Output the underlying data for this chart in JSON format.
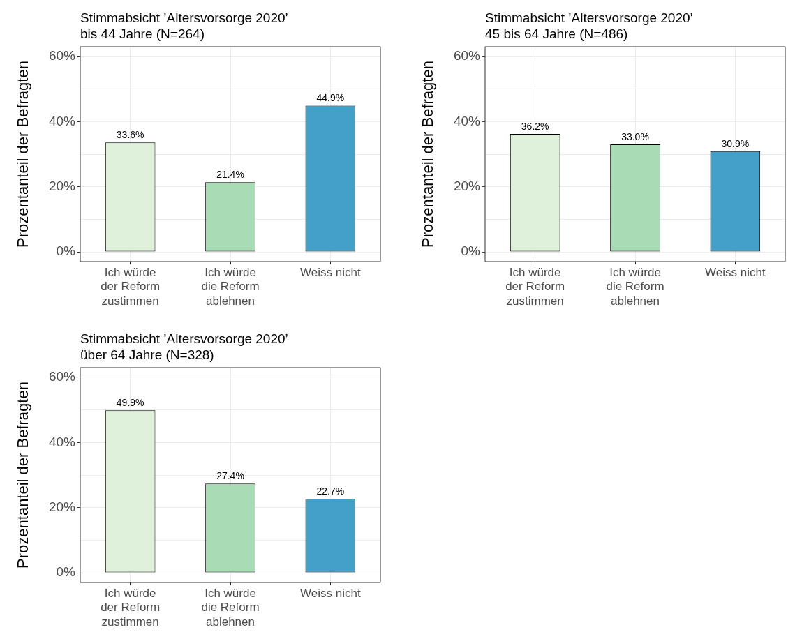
{
  "chart_data": [
    {
      "type": "bar",
      "title": "Stimmabsicht ’Altersvorsorge 2020’",
      "subtitle": "bis 44 Jahre (N=264)",
      "ylabel": "Prozentanteil der Befragten",
      "categories": [
        "Ich würde der Reform zustimmen",
        "Ich würde die Reform ablehnen",
        "Weiss nicht"
      ],
      "values": [
        33.6,
        21.4,
        44.9
      ],
      "colors": [
        "#dff1da",
        "#a8dcb5",
        "#42a0c9"
      ],
      "value_labels": [
        "33.6%",
        "21.4%",
        "44.9%"
      ],
      "ylim": [
        -3,
        63
      ],
      "yticks": [
        {
          "value": 0,
          "label": "0%"
        },
        {
          "value": 10,
          "label": null
        },
        {
          "value": 20,
          "label": "20%"
        },
        {
          "value": 30,
          "label": null
        },
        {
          "value": 40,
          "label": "40%"
        },
        {
          "value": 50,
          "label": null
        },
        {
          "value": 60,
          "label": "60%"
        }
      ],
      "grid": true,
      "legend": false
    },
    {
      "type": "bar",
      "title": "Stimmabsicht ’Altersvorsorge 2020’",
      "subtitle": "45 bis 64 Jahre (N=486)",
      "ylabel": "Prozentanteil der Befragten",
      "categories": [
        "Ich würde der Reform zustimmen",
        "Ich würde die Reform ablehnen",
        "Weiss nicht"
      ],
      "values": [
        36.2,
        33.0,
        30.9
      ],
      "colors": [
        "#dff1da",
        "#a8dcb5",
        "#42a0c9"
      ],
      "value_labels": [
        "36.2%",
        "33.0%",
        "30.9%"
      ],
      "ylim": [
        -3,
        63
      ],
      "yticks": [
        {
          "value": 0,
          "label": "0%"
        },
        {
          "value": 10,
          "label": null
        },
        {
          "value": 20,
          "label": "20%"
        },
        {
          "value": 30,
          "label": null
        },
        {
          "value": 40,
          "label": "40%"
        },
        {
          "value": 50,
          "label": null
        },
        {
          "value": 60,
          "label": "60%"
        }
      ],
      "grid": true,
      "legend": false
    },
    {
      "type": "bar",
      "title": "Stimmabsicht ’Altersvorsorge 2020’",
      "subtitle": "über 64 Jahre (N=328)",
      "ylabel": "Prozentanteil der Befragten",
      "categories": [
        "Ich würde der Reform zustimmen",
        "Ich würde die Reform ablehnen",
        "Weiss nicht"
      ],
      "values": [
        49.9,
        27.4,
        22.7
      ],
      "colors": [
        "#dff1da",
        "#a8dcb5",
        "#42a0c9"
      ],
      "value_labels": [
        "49.9%",
        "27.4%",
        "22.7%"
      ],
      "ylim": [
        -3,
        63
      ],
      "yticks": [
        {
          "value": 0,
          "label": "0%"
        },
        {
          "value": 10,
          "label": null
        },
        {
          "value": 20,
          "label": "20%"
        },
        {
          "value": 30,
          "label": null
        },
        {
          "value": 40,
          "label": "40%"
        },
        {
          "value": 50,
          "label": null
        },
        {
          "value": 60,
          "label": "60%"
        }
      ],
      "grid": true,
      "legend": false
    }
  ]
}
